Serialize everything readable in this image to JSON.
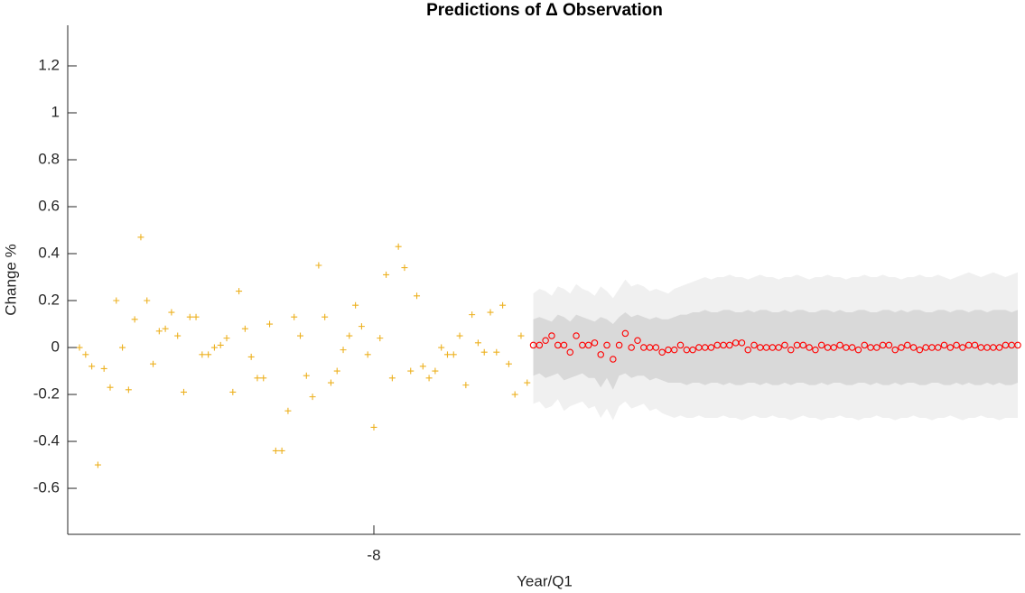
{
  "chart_data": {
    "type": "scatter",
    "title": "Predictions of Δ Observation",
    "xlabel": "Year/Q1",
    "ylabel": "Change %",
    "xlim": [
      -20.48,
      18.36
    ],
    "xticks": [
      -8
    ],
    "ylim": [
      -0.796,
      1.373
    ],
    "yticks": [
      -0.6,
      -0.4,
      -0.2,
      0,
      0.2,
      0.4,
      0.6,
      0.8,
      1,
      1.2
    ],
    "series": [
      {
        "color": "#EDB120",
        "marker": "+",
        "x": [
          -20,
          -19.75,
          -19.5,
          -19.25,
          -19,
          -18.75,
          -18.5,
          -18.25,
          -18,
          -17.75,
          -17.5,
          -17.25,
          -17,
          -16.75,
          -16.5,
          -16.25,
          -16,
          -15.75,
          -15.5,
          -15.25,
          -15,
          -14.75,
          -14.5,
          -14.25,
          -14,
          -13.75,
          -13.5,
          -13.25,
          -13,
          -12.75,
          -12.5,
          -12.25,
          -12,
          -11.75,
          -11.5,
          -11.25,
          -11,
          -10.75,
          -10.5,
          -10.25,
          -10,
          -9.75,
          -9.5,
          -9.25,
          -9,
          -8.75,
          -8.5,
          -8.25,
          -8,
          -7.75,
          -7.5,
          -7.25,
          -7,
          -6.75,
          -6.5,
          -6.25,
          -6,
          -5.75,
          -5.5,
          -5.25,
          -5,
          -4.75,
          -4.5,
          -4.25,
          -4,
          -3.75,
          -3.5,
          -3.25,
          -3,
          -2.75,
          -2.5,
          -2.25,
          -2,
          -1.75
        ],
        "values": [
          0,
          -0.03,
          -0.08,
          -0.5,
          -0.09,
          -0.17,
          0.2,
          0,
          -0.18,
          0.12,
          0.47,
          0.2,
          -0.07,
          0.07,
          0.08,
          0.15,
          0.05,
          -0.19,
          0.13,
          0.13,
          -0.03,
          -0.03,
          0,
          0.01,
          0.04,
          -0.19,
          0.24,
          0.08,
          -0.04,
          -0.13,
          -0.13,
          0.1,
          -0.44,
          -0.44,
          -0.27,
          0.13,
          0.05,
          -0.12,
          -0.21,
          0.35,
          0.13,
          -0.15,
          -0.1,
          -0.01,
          0.05,
          0.18,
          0.09,
          -0.03,
          -0.34,
          0.04,
          0.31,
          -0.13,
          0.43,
          0.34,
          -0.1,
          0.22,
          -0.08,
          -0.13,
          -0.1,
          0,
          -0.03,
          -0.03,
          0.05,
          -0.16,
          0.14,
          0.02,
          -0.02,
          0.15,
          -0.02,
          0.18,
          -0.07,
          -0.2,
          0.05,
          -0.15
        ]
      },
      {
        "color": "#FF0000",
        "marker": "o",
        "x": [
          -1.5,
          -1.25,
          -1,
          -0.75,
          -0.5,
          -0.25,
          0,
          0.25,
          0.5,
          0.75,
          1,
          1.25,
          1.5,
          1.75,
          2,
          2.25,
          2.5,
          2.75,
          3,
          3.25,
          3.5,
          3.75,
          4,
          4.25,
          4.5,
          4.75,
          5,
          5.25,
          5.5,
          5.75,
          6,
          6.25,
          6.5,
          6.75,
          7,
          7.25,
          7.5,
          7.75,
          8,
          8.25,
          8.5,
          8.75,
          9,
          9.25,
          9.5,
          9.75,
          10,
          10.25,
          10.5,
          10.75,
          11,
          11.25,
          11.5,
          11.75,
          12,
          12.25,
          12.5,
          12.75,
          13,
          13.25,
          13.5,
          13.75,
          14,
          14.25,
          14.5,
          14.75,
          15,
          15.25,
          15.5,
          15.75,
          16,
          16.25,
          16.5,
          16.75,
          17,
          17.25,
          17.5,
          17.75,
          18,
          18.25
        ],
        "values": [
          0.01,
          0.01,
          0.03,
          0.05,
          0.01,
          0.01,
          -0.02,
          0.05,
          0.01,
          0.01,
          0.02,
          -0.03,
          0.01,
          -0.05,
          0.01,
          0.06,
          0,
          0.03,
          0,
          0,
          0,
          -0.02,
          -0.01,
          -0.01,
          0.01,
          -0.01,
          -0.01,
          0,
          0,
          0,
          0.01,
          0.01,
          0.01,
          0.02,
          0.02,
          -0.01,
          0.01,
          0,
          0,
          0,
          0,
          0.01,
          -0.01,
          0.01,
          0.01,
          0,
          -0.01,
          0.01,
          0,
          0,
          0.01,
          0,
          0,
          -0.01,
          0.01,
          0,
          0,
          0.01,
          0.01,
          -0.01,
          0,
          0.01,
          0,
          -0.01,
          0,
          0,
          0,
          0.01,
          0,
          0.01,
          0,
          0.01,
          0.01,
          0,
          0,
          0,
          0,
          0.01,
          0.01,
          0.01
        ]
      }
    ],
    "bands": [
      {
        "color": "#F0F0F0",
        "upper": [
          0.23,
          0.25,
          0.24,
          0.22,
          0.26,
          0.25,
          0.23,
          0.27,
          0.25,
          0.24,
          0.22,
          0.26,
          0.24,
          0.21,
          0.25,
          0.29,
          0.26,
          0.27,
          0.26,
          0.24,
          0.25,
          0.24,
          0.23,
          0.25,
          0.26,
          0.27,
          0.28,
          0.29,
          0.3,
          0.29,
          0.3,
          0.3,
          0.31,
          0.3,
          0.3,
          0.29,
          0.3,
          0.31,
          0.3,
          0.3,
          0.29,
          0.3,
          0.3,
          0.31,
          0.3,
          0.29,
          0.3,
          0.3,
          0.31,
          0.3,
          0.3,
          0.29,
          0.3,
          0.3,
          0.31,
          0.3,
          0.3,
          0.31,
          0.3,
          0.3,
          0.29,
          0.3,
          0.3,
          0.31,
          0.3,
          0.3,
          0.31,
          0.3,
          0.29,
          0.3,
          0.31,
          0.32,
          0.31,
          0.3,
          0.31,
          0.32,
          0.31,
          0.3,
          0.31,
          0.32
        ],
        "lower": [
          -0.24,
          -0.23,
          -0.26,
          -0.25,
          -0.22,
          -0.27,
          -0.25,
          -0.24,
          -0.23,
          -0.26,
          -0.25,
          -0.3,
          -0.26,
          -0.31,
          -0.25,
          -0.23,
          -0.26,
          -0.25,
          -0.24,
          -0.27,
          -0.26,
          -0.28,
          -0.29,
          -0.3,
          -0.29,
          -0.3,
          -0.3,
          -0.29,
          -0.3,
          -0.3,
          -0.3,
          -0.29,
          -0.3,
          -0.3,
          -0.31,
          -0.3,
          -0.29,
          -0.3,
          -0.3,
          -0.29,
          -0.3,
          -0.3,
          -0.31,
          -0.3,
          -0.29,
          -0.3,
          -0.3,
          -0.31,
          -0.3,
          -0.3,
          -0.29,
          -0.3,
          -0.3,
          -0.31,
          -0.3,
          -0.3,
          -0.29,
          -0.3,
          -0.3,
          -0.31,
          -0.3,
          -0.3,
          -0.29,
          -0.3,
          -0.3,
          -0.31,
          -0.3,
          -0.3,
          -0.29,
          -0.3,
          -0.31,
          -0.3,
          -0.3,
          -0.29,
          -0.3,
          -0.3,
          -0.31,
          -0.3,
          -0.3,
          -0.3
        ]
      },
      {
        "color": "#D9D9D9",
        "upper": [
          0.12,
          0.13,
          0.12,
          0.11,
          0.14,
          0.13,
          0.11,
          0.14,
          0.13,
          0.12,
          0.11,
          0.13,
          0.12,
          0.1,
          0.13,
          0.15,
          0.13,
          0.14,
          0.13,
          0.12,
          0.13,
          0.12,
          0.12,
          0.13,
          0.14,
          0.14,
          0.15,
          0.15,
          0.16,
          0.15,
          0.15,
          0.16,
          0.16,
          0.15,
          0.15,
          0.16,
          0.15,
          0.16,
          0.16,
          0.15,
          0.15,
          0.16,
          0.15,
          0.16,
          0.16,
          0.15,
          0.15,
          0.16,
          0.16,
          0.15,
          0.16,
          0.15,
          0.15,
          0.16,
          0.16,
          0.15,
          0.15,
          0.16,
          0.16,
          0.15,
          0.16,
          0.15,
          0.16,
          0.16,
          0.15,
          0.15,
          0.16,
          0.16,
          0.15,
          0.16,
          0.16,
          0.15,
          0.16,
          0.16,
          0.15,
          0.16,
          0.16,
          0.16,
          0.15,
          0.16
        ],
        "lower": [
          -0.12,
          -0.11,
          -0.13,
          -0.12,
          -0.11,
          -0.14,
          -0.13,
          -0.12,
          -0.11,
          -0.13,
          -0.13,
          -0.17,
          -0.13,
          -0.18,
          -0.12,
          -0.11,
          -0.13,
          -0.12,
          -0.12,
          -0.14,
          -0.13,
          -0.14,
          -0.15,
          -0.15,
          -0.15,
          -0.16,
          -0.15,
          -0.15,
          -0.16,
          -0.15,
          -0.15,
          -0.16,
          -0.15,
          -0.16,
          -0.16,
          -0.15,
          -0.15,
          -0.16,
          -0.15,
          -0.16,
          -0.16,
          -0.15,
          -0.16,
          -0.15,
          -0.15,
          -0.16,
          -0.16,
          -0.15,
          -0.16,
          -0.15,
          -0.15,
          -0.16,
          -0.16,
          -0.15,
          -0.15,
          -0.16,
          -0.15,
          -0.16,
          -0.16,
          -0.15,
          -0.16,
          -0.15,
          -0.15,
          -0.16,
          -0.16,
          -0.15,
          -0.15,
          -0.16,
          -0.16,
          -0.15,
          -0.16,
          -0.15,
          -0.16,
          -0.16,
          -0.15,
          -0.16,
          -0.15,
          -0.16,
          -0.16,
          -0.15
        ]
      }
    ]
  }
}
